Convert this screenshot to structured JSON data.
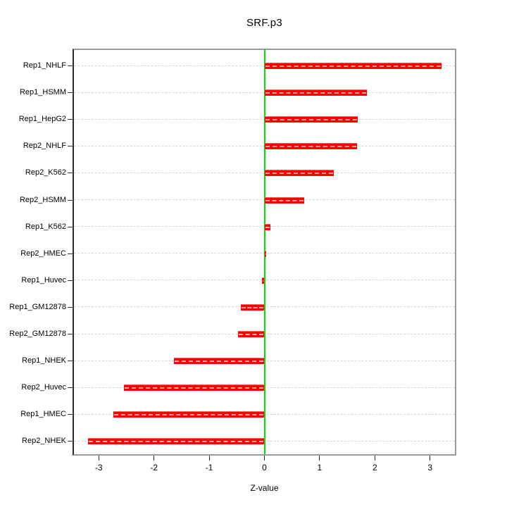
{
  "chart_data": {
    "type": "bar",
    "orientation": "horizontal",
    "title": "SRF.p3",
    "xlabel": "Z-value",
    "ylabel": "",
    "categories": [
      "Rep1_NHLF",
      "Rep1_HSMM",
      "Rep1_HepG2",
      "Rep2_NHLF",
      "Rep2_K562",
      "Rep2_HSMM",
      "Rep1_K562",
      "Rep2_HMEC",
      "Rep1_Huvec",
      "Rep1_GM12878",
      "Rep2_GM12878",
      "Rep1_NHEK",
      "Rep2_Huvec",
      "Rep1_HMEC",
      "Rep2_NHEK"
    ],
    "values": [
      3.21,
      1.86,
      1.69,
      1.68,
      1.26,
      0.72,
      0.11,
      0.03,
      -0.05,
      -0.43,
      -0.48,
      -1.64,
      -2.54,
      -2.73,
      -3.19
    ],
    "xlim": [
      -3.45,
      3.45
    ],
    "xticks": [
      "-3",
      "-2",
      "-1",
      "0",
      "1",
      "2",
      "3"
    ],
    "grid": "horizontal-dashed",
    "zero_line_at": 0,
    "legend": "none",
    "colors": {
      "bar": "#ff0000",
      "bar_stripe": "rgba(255,255,255,0.65)",
      "zero_line": "#00e000",
      "grid": "#d6d6d6",
      "box_border": "#9a9a9a",
      "axis": "#2a2a2a",
      "text": "#000000",
      "background": "#ffffff"
    }
  }
}
